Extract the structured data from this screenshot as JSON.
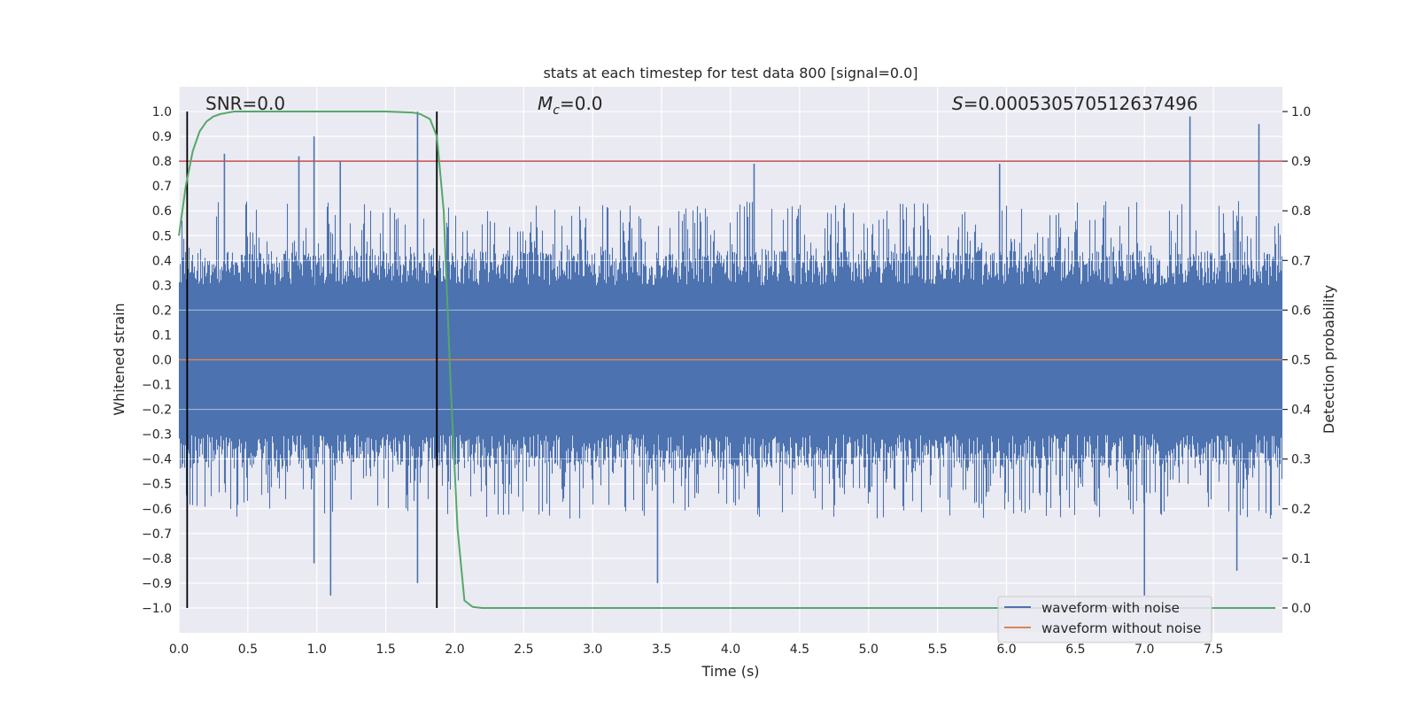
{
  "chart_data": {
    "type": "line",
    "title": "stats at each timestep for test data 800 [signal=0.0]",
    "xlabel": "Time (s)",
    "ylabel": "Whitened strain",
    "y2label": "Detection probability",
    "xlim": [
      0.0,
      8.0
    ],
    "ylim": [
      -1.1,
      1.1
    ],
    "y2lim": [
      -0.05,
      1.05
    ],
    "xticks": [
      0.0,
      0.5,
      1.0,
      1.5,
      2.0,
      2.5,
      3.0,
      3.5,
      4.0,
      4.5,
      5.0,
      5.5,
      6.0,
      6.5,
      7.0,
      7.5
    ],
    "xtick_labels": [
      "0.0",
      "0.5",
      "1.0",
      "1.5",
      "2.0",
      "2.5",
      "3.0",
      "3.5",
      "4.0",
      "4.5",
      "5.0",
      "5.5",
      "6.0",
      "6.5",
      "7.0",
      "7.5"
    ],
    "yticks": [
      -1.0,
      -0.9,
      -0.8,
      -0.7,
      -0.6,
      -0.5,
      -0.4,
      -0.3,
      -0.2,
      -0.1,
      0.0,
      0.1,
      0.2,
      0.3,
      0.4,
      0.5,
      0.6,
      0.7,
      0.8,
      0.9,
      1.0
    ],
    "ytick_labels": [
      "−1.0",
      "−0.9",
      "−0.8",
      "−0.7",
      "−0.6",
      "−0.5",
      "−0.4",
      "−0.3",
      "−0.2",
      "−0.1",
      "0.0",
      "0.1",
      "0.2",
      "0.3",
      "0.4",
      "0.5",
      "0.6",
      "0.7",
      "0.8",
      "0.9",
      "1.0"
    ],
    "y2ticks": [
      0.0,
      0.1,
      0.2,
      0.3,
      0.4,
      0.5,
      0.6,
      0.7,
      0.8,
      0.9,
      1.0
    ],
    "y2tick_labels": [
      "0.0",
      "0.1",
      "0.2",
      "0.3",
      "0.4",
      "0.5",
      "0.6",
      "0.7",
      "0.8",
      "0.9",
      "1.0"
    ],
    "grid": true,
    "legend_position": "bottom-right",
    "annotations": {
      "snr": "SNR=0.0",
      "mc_symbol": "M",
      "mc_sub": "c",
      "mc_value": "=0.0",
      "s_symbol": "S",
      "s_value": "=0.000530570512637496"
    },
    "series": [
      {
        "name": "waveform with noise",
        "color": "#4c72b0",
        "kind": "noise",
        "sample_rate": 2048,
        "core_amplitude": 0.4,
        "peak_values": [
          {
            "x": 0.33,
            "y": 0.83
          },
          {
            "x": 0.87,
            "y": 0.82
          },
          {
            "x": 0.98,
            "y": 0.9
          },
          {
            "x": 1.17,
            "y": 0.8
          },
          {
            "x": 1.73,
            "y": 1.0
          },
          {
            "x": 4.17,
            "y": 0.79
          },
          {
            "x": 5.95,
            "y": 0.79
          },
          {
            "x": 7.33,
            "y": 0.98
          },
          {
            "x": 7.83,
            "y": 0.95
          },
          {
            "x": 1.1,
            "y": -0.95
          },
          {
            "x": 1.73,
            "y": -0.9
          },
          {
            "x": 3.47,
            "y": -0.9
          },
          {
            "x": 7.0,
            "y": -0.95
          },
          {
            "x": 0.98,
            "y": -0.82
          },
          {
            "x": 7.67,
            "y": -0.85
          }
        ]
      },
      {
        "name": "waveform without noise",
        "color": "#dd8452",
        "kind": "constant",
        "value": 0.0
      },
      {
        "name": "detection probability",
        "color": "#55a868",
        "axis": "right",
        "x": [
          0.0,
          0.05,
          0.1,
          0.15,
          0.2,
          0.25,
          0.3,
          0.4,
          0.5,
          1.0,
          1.5,
          1.7,
          1.75,
          1.82,
          1.87,
          1.92,
          1.97,
          2.02,
          2.07,
          2.13,
          2.2,
          3.0,
          4.0,
          5.0,
          6.0,
          7.0,
          7.95
        ],
        "y": [
          0.75,
          0.85,
          0.92,
          0.96,
          0.98,
          0.99,
          0.995,
          1.0,
          1.0,
          1.0,
          1.0,
          0.998,
          0.995,
          0.985,
          0.95,
          0.8,
          0.45,
          0.16,
          0.015,
          0.002,
          0.0,
          0.0,
          0.0,
          0.0,
          0.0,
          0.0,
          0.0
        ]
      }
    ],
    "threshold": {
      "value": 0.9,
      "axis": "right",
      "color": "#c44e52"
    },
    "vertical_markers": [
      {
        "x": 0.06
      },
      {
        "x": 1.87
      }
    ]
  }
}
